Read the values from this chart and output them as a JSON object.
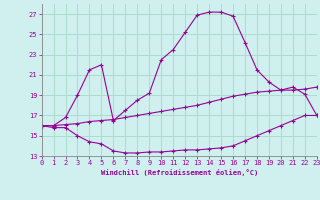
{
  "xlabel": "Windchill (Refroidissement éolien,°C)",
  "bg_color": "#cff0ee",
  "grid_color": "#aaddcc",
  "line_color": "#990099",
  "ylim": [
    13,
    28
  ],
  "xlim": [
    0,
    23
  ],
  "yticks": [
    13,
    15,
    17,
    19,
    21,
    23,
    25,
    27
  ],
  "xticks": [
    0,
    1,
    2,
    3,
    4,
    5,
    6,
    7,
    8,
    9,
    10,
    11,
    12,
    13,
    14,
    15,
    16,
    17,
    18,
    19,
    20,
    21,
    22,
    23
  ],
  "curve1_x": [
    0,
    1,
    2,
    3,
    4,
    5,
    6,
    7,
    8,
    9,
    10,
    11,
    12,
    13,
    14,
    15,
    16,
    17,
    18,
    19,
    20,
    21,
    22,
    23
  ],
  "curve1_y": [
    16.0,
    15.8,
    15.8,
    15.0,
    14.4,
    14.2,
    13.5,
    13.3,
    13.3,
    13.4,
    13.4,
    13.5,
    13.6,
    13.6,
    13.7,
    13.8,
    14.0,
    14.5,
    15.0,
    15.5,
    16.0,
    16.5,
    17.0,
    17.0
  ],
  "curve2_x": [
    0,
    1,
    2,
    3,
    4,
    5,
    6,
    7,
    8,
    9,
    10,
    11,
    12,
    13,
    14,
    15,
    16,
    17,
    18,
    19,
    20,
    21,
    22,
    23
  ],
  "curve2_y": [
    16.0,
    16.0,
    16.1,
    16.2,
    16.4,
    16.5,
    16.6,
    16.8,
    17.0,
    17.2,
    17.4,
    17.6,
    17.8,
    18.0,
    18.3,
    18.6,
    18.9,
    19.1,
    19.3,
    19.4,
    19.5,
    19.5,
    19.6,
    19.8
  ],
  "curve3_x": [
    0,
    1,
    2,
    3,
    4,
    5,
    6,
    7,
    8,
    9,
    10,
    11,
    12,
    13,
    14,
    15,
    16,
    17,
    18,
    19,
    20,
    21,
    22,
    23
  ],
  "curve3_y": [
    16.0,
    16.0,
    16.8,
    19.0,
    21.5,
    22.0,
    16.5,
    17.5,
    18.5,
    19.2,
    22.5,
    23.5,
    25.2,
    26.9,
    27.2,
    27.2,
    26.8,
    24.2,
    21.5,
    20.3,
    19.5,
    19.8,
    19.1,
    17.0
  ]
}
